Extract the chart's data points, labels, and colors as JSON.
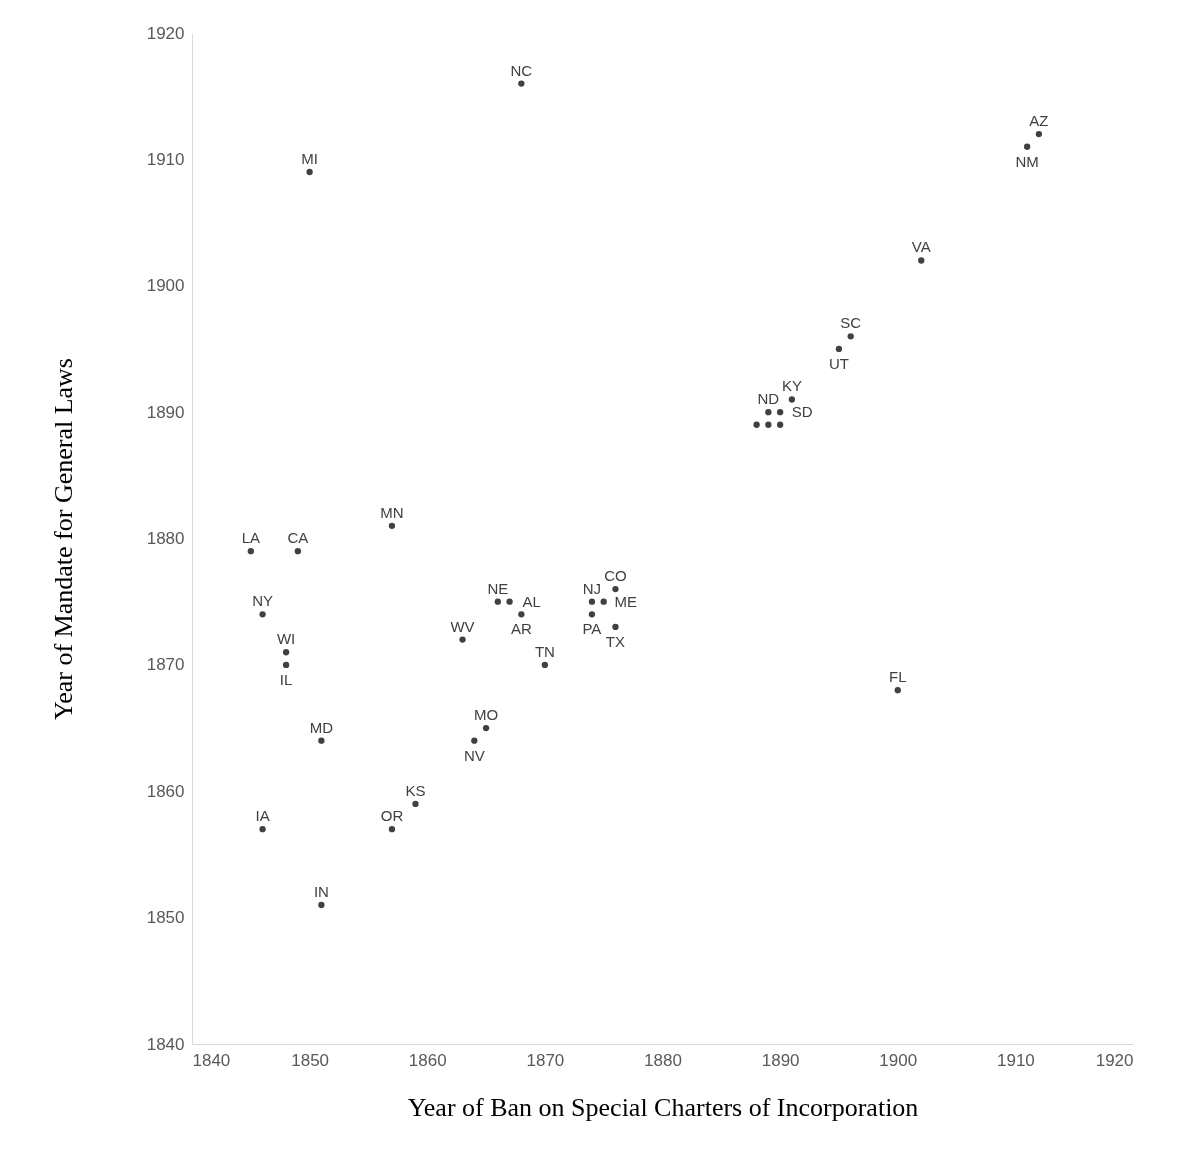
{
  "chart_data": {
    "type": "scatter",
    "xlabel": "Year of Ban on Special Charters of Incorporation",
    "ylabel": "Year of Mandate for General Laws",
    "xlim": [
      1840,
      1920
    ],
    "ylim": [
      1840,
      1920
    ],
    "xticks": [
      1840,
      1850,
      1860,
      1870,
      1880,
      1890,
      1900,
      1910,
      1920
    ],
    "yticks": [
      1840,
      1850,
      1860,
      1870,
      1880,
      1890,
      1900,
      1910,
      1920
    ],
    "marker": "circle",
    "series": [
      {
        "color": "#404040",
        "x": [
          1868,
          1850,
          1912,
          1911,
          1902,
          1896,
          1895,
          1891,
          1889,
          1890,
          1888,
          1889,
          1890,
          1845,
          1849,
          1857,
          1846,
          1848,
          1848,
          1851,
          1846,
          1857,
          1859,
          1851,
          1865,
          1864,
          1863,
          1866,
          1867,
          1868,
          1870,
          1874,
          1874,
          1875,
          1876,
          1876,
          1900
        ],
        "values": [
          1916,
          1909,
          1912,
          1911,
          1902,
          1896,
          1895,
          1891,
          1890,
          1890,
          1889,
          1889,
          1889,
          1879,
          1879,
          1881,
          1874,
          1871,
          1870,
          1864,
          1857,
          1857,
          1859,
          1851,
          1865,
          1864,
          1872,
          1875,
          1875,
          1874,
          1870,
          1874,
          1875,
          1875,
          1876,
          1873,
          1868
        ],
        "value_labels": [
          "NC",
          "MI",
          "AZ",
          "NM",
          "VA",
          "SC",
          "UT",
          "KY",
          "ND",
          "SD",
          null,
          null,
          null,
          "LA",
          "CA",
          "MN",
          "NY",
          "WI",
          "IL",
          "MD",
          "IA",
          "OR",
          "KS",
          "IN",
          "MO",
          "NV",
          "WV",
          "NE",
          "AL",
          "AR",
          "TN",
          "PA",
          "NJ",
          "ME",
          "CO",
          "TX",
          "FL"
        ]
      }
    ]
  }
}
